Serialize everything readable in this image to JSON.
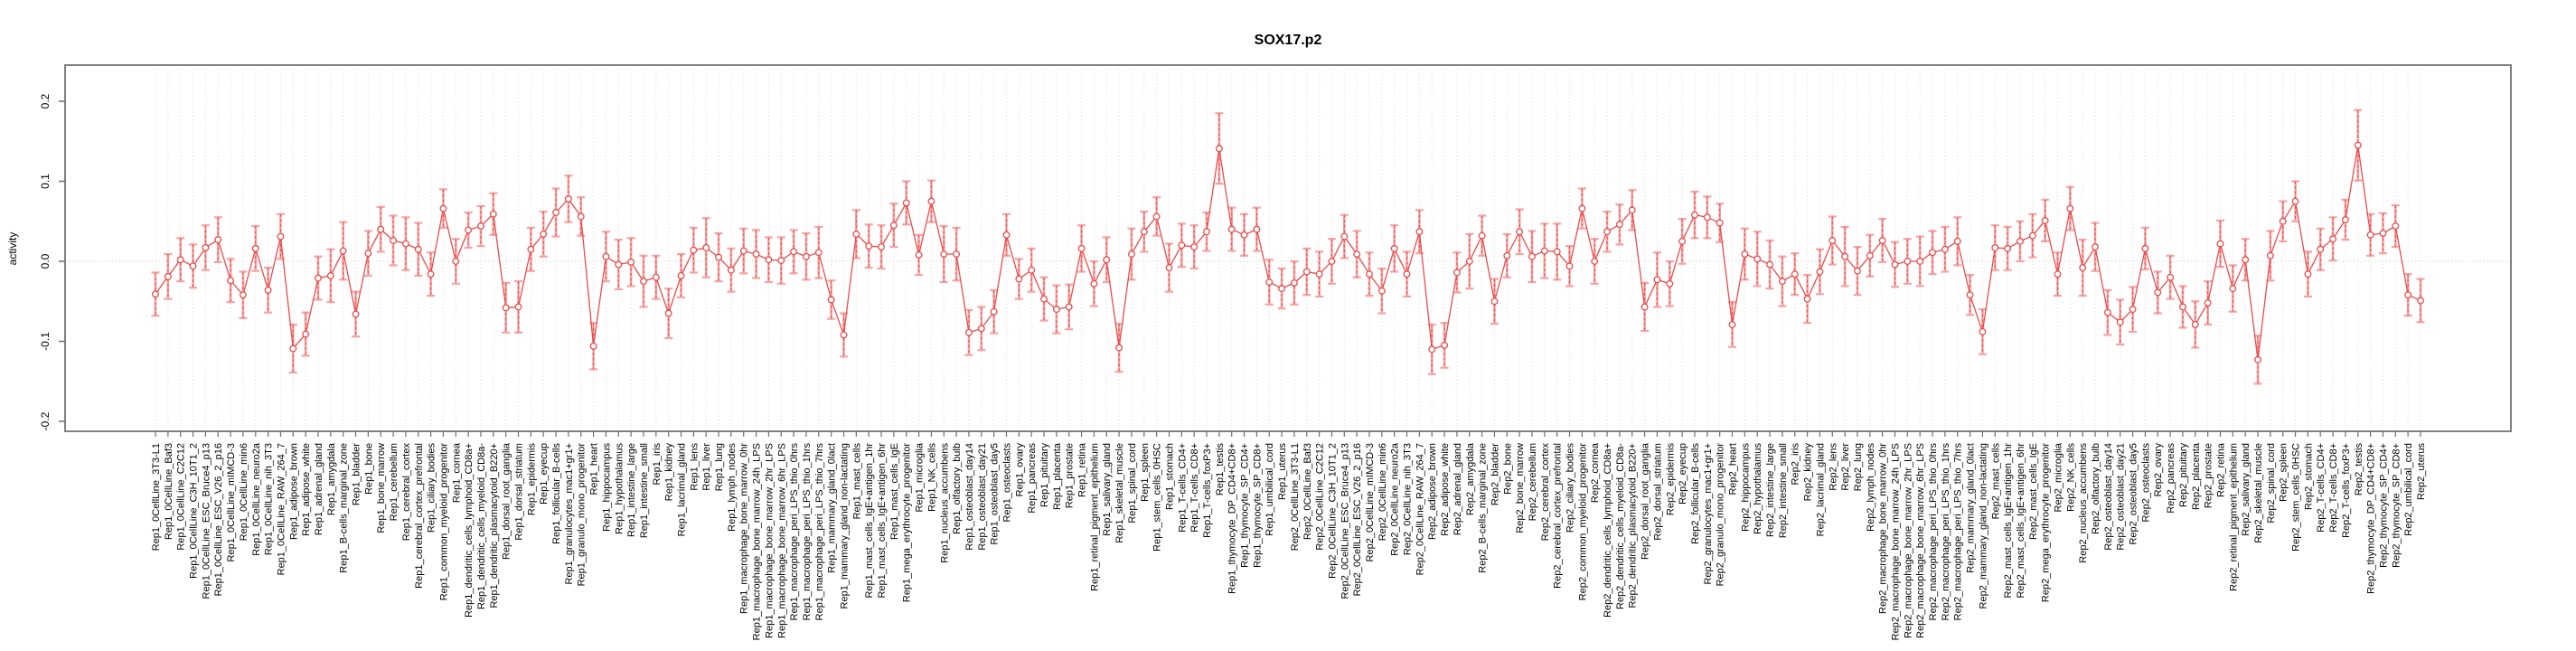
{
  "title": "SOX17.p2",
  "chart_data": {
    "type": "line",
    "title": "SOX17.p2",
    "xlabel": "",
    "ylabel": "activity",
    "ylim": [
      -0.212,
      0.245
    ],
    "yticks": [
      "0.2",
      "0.1",
      "0.0",
      "-0.1",
      "-0.2"
    ],
    "ytick_values": [
      0.2,
      0.1,
      0.0,
      -0.1,
      -0.2
    ],
    "grid": "vertical dotted gridline per category; dotted horizontal line at 0.0",
    "legend": "none",
    "marker": "open-circle",
    "error_bars": "symmetric, salmon band with caps plus red dashed stem",
    "colors": {
      "point": "#e84c4c",
      "line": "#e84c4c",
      "error_bar": "#f7a2a2",
      "grid": "#dcdcdc",
      "zero_line": "#c9c9c9",
      "axis": "#828282",
      "tick": "#6e6e6e",
      "text": "#000000"
    },
    "points": [
      [
        "Rep1_0CellLine_3T3-L1",
        -0.041,
        0.027
      ],
      [
        "Rep1_0CellLine_Baf3",
        -0.019,
        0.028
      ],
      [
        "Rep1_0CellLine_C2C12",
        0.002,
        0.027
      ],
      [
        "Rep1_0CellLine_C3H_10T1_2",
        -0.006,
        0.027
      ],
      [
        "Rep1_0CellLine_ESC_Bruce4_p13",
        0.017,
        0.028
      ],
      [
        "Rep1_0CellLine_ESC_V26_2_p16",
        0.027,
        0.028
      ],
      [
        "Rep1_0CellLine_mIMCD-3",
        -0.024,
        0.027
      ],
      [
        "Rep1_0CellLine_min6",
        -0.042,
        0.029
      ],
      [
        "Rep1_0CellLine_neuro2a",
        0.016,
        0.028
      ],
      [
        "Rep1_0CellLine_nih_3T3",
        -0.036,
        0.028
      ],
      [
        "Rep1_0CellLine_RAW_264_7",
        0.031,
        0.028
      ],
      [
        "Rep1_adipose_brown",
        -0.109,
        0.03
      ],
      [
        "Rep1_adipose_white",
        -0.091,
        0.027
      ],
      [
        "Rep1_adrenal_gland",
        -0.021,
        0.027
      ],
      [
        "Rep1_amygdala",
        -0.018,
        0.033
      ],
      [
        "Rep1_B-cells_marginal_zone",
        0.013,
        0.036
      ],
      [
        "Rep1_bladder",
        -0.066,
        0.028
      ],
      [
        "Rep1_bone",
        0.01,
        0.028
      ],
      [
        "Rep1_bone_marrow",
        0.04,
        0.028
      ],
      [
        "Rep1_cerebellum",
        0.026,
        0.031
      ],
      [
        "Rep1_cerebral_cortex",
        0.022,
        0.033
      ],
      [
        "Rep1_cerebral_cortex_prefrontal",
        0.015,
        0.033
      ],
      [
        "Rep1_ciliary_bodies",
        -0.016,
        0.027
      ],
      [
        "Rep1_common_myeloid_progenitor",
        0.066,
        0.024
      ],
      [
        "Rep1_cornea",
        0.0,
        0.028
      ],
      [
        "Rep1_dendritic_cells_lymphoid_CD8a+",
        0.039,
        0.022
      ],
      [
        "Rep1_dendritic_cells_myeloid_CD8a-",
        0.044,
        0.025
      ],
      [
        "Rep1_dendritic_plasmacytoid_B220+",
        0.059,
        0.026
      ],
      [
        "Rep1_dorsal_root_ganglia",
        -0.058,
        0.031
      ],
      [
        "Rep1_dorsal_striatum",
        -0.057,
        0.032
      ],
      [
        "Rep1_epidermis",
        0.015,
        0.027
      ],
      [
        "Rep1_eyecup",
        0.034,
        0.028
      ],
      [
        "Rep1_follicular_B-cells",
        0.061,
        0.03
      ],
      [
        "Rep1_granulocytes_mac1+gr1+",
        0.078,
        0.029
      ],
      [
        "Rep1_granulo_mono_progenitor",
        0.056,
        0.024
      ],
      [
        "Rep1_heart",
        -0.106,
        0.029
      ],
      [
        "Rep1_hippocampus",
        0.006,
        0.031
      ],
      [
        "Rep1_hypothalamus",
        -0.004,
        0.031
      ],
      [
        "Rep1_intestine_large",
        -0.001,
        0.03
      ],
      [
        "Rep1_intestine_small",
        -0.025,
        0.032
      ],
      [
        "Rep1_iris",
        -0.02,
        0.027
      ],
      [
        "Rep1_kidney",
        -0.065,
        0.031
      ],
      [
        "Rep1_lacrimal_gland",
        -0.018,
        0.027
      ],
      [
        "Rep1_lens",
        0.014,
        0.028
      ],
      [
        "Rep1_liver",
        0.017,
        0.037
      ],
      [
        "Rep1_lung",
        0.005,
        0.03
      ],
      [
        "Rep1_lymph_nodes",
        -0.011,
        0.027
      ],
      [
        "Rep1_macrophage_bone_marrow_0hr",
        0.013,
        0.028
      ],
      [
        "Rep1_macrophage_bone_marrow_24h_LPS",
        0.009,
        0.03
      ],
      [
        "Rep1_macrophage_bone_marrow_2hr_LPS",
        0.002,
        0.028
      ],
      [
        "Rep1_macrophage_bone_marrow_6hr_LPS",
        0.001,
        0.029
      ],
      [
        "Rep1_macrophage_peri_LPS_thio_0hrs",
        0.012,
        0.027
      ],
      [
        "Rep1_macrophage_peri_LPS_thio_1hrs",
        0.006,
        0.029
      ],
      [
        "Rep1_macrophage_peri_LPS_thio_7hrs",
        0.011,
        0.032
      ],
      [
        "Rep1_mammary_gland_0lact",
        -0.048,
        0.024
      ],
      [
        "Rep1_mammary_gland_non-lactating",
        -0.092,
        0.027
      ],
      [
        "Rep1_mast_cells",
        0.034,
        0.03
      ],
      [
        "Rep1_mast_cells_IgE+antigen_1hr",
        0.019,
        0.027
      ],
      [
        "Rep1_mast_cells_IgE+antigen_6hr",
        0.018,
        0.027
      ],
      [
        "Rep1_mast_cells_IgE",
        0.045,
        0.027
      ],
      [
        "Rep1_mega_erythrocyte_progenitor",
        0.073,
        0.027
      ],
      [
        "Rep1_microglia",
        0.008,
        0.025
      ],
      [
        "Rep1_NK_cells",
        0.075,
        0.026
      ],
      [
        "Rep1_nucleus_accumbens",
        0.009,
        0.035
      ],
      [
        "Rep1_olfactory_bulb",
        0.009,
        0.033
      ],
      [
        "Rep1_osteoblast_day14",
        -0.089,
        0.028
      ],
      [
        "Rep1_osteoblast_day21",
        -0.084,
        0.027
      ],
      [
        "Rep1_osteoblast_day5",
        -0.063,
        0.027
      ],
      [
        "Rep1_osteoclasts",
        0.033,
        0.026
      ],
      [
        "Rep1_ovary",
        -0.022,
        0.025
      ],
      [
        "Rep1_pancreas",
        -0.011,
        0.027
      ],
      [
        "Rep1_pituitary",
        -0.047,
        0.027
      ],
      [
        "Rep1_placenta",
        -0.06,
        0.03
      ],
      [
        "Rep1_prostate",
        -0.057,
        0.028
      ],
      [
        "Rep1_retina",
        0.016,
        0.029
      ],
      [
        "Rep1_retinal_pigment_epithelium",
        -0.028,
        0.028
      ],
      [
        "Rep1_salivary_gland",
        0.002,
        0.028
      ],
      [
        "Rep1_skeletal_muscle",
        -0.108,
        0.03
      ],
      [
        "Rep1_spinal_cord",
        0.009,
        0.032
      ],
      [
        "Rep1_spleen",
        0.037,
        0.025
      ],
      [
        "Rep1_stem_cells_0HSC",
        0.056,
        0.024
      ],
      [
        "Rep1_stomach",
        -0.008,
        0.03
      ],
      [
        "Rep1_T-cells_CD4+",
        0.02,
        0.027
      ],
      [
        "Rep1_T-cells_CD8+",
        0.018,
        0.027
      ],
      [
        "Rep1_T-cells_foxP3+",
        0.037,
        0.024
      ],
      [
        "Rep1_testis",
        0.141,
        0.044
      ],
      [
        "Rep1_thymocyte_DP_CD4+CD8+",
        0.04,
        0.027
      ],
      [
        "Rep1_thymocyte_SP_CD4+",
        0.033,
        0.026
      ],
      [
        "Rep1_thymocyte_SP_CD8+",
        0.04,
        0.027
      ],
      [
        "Rep1_umbilical_cord",
        -0.026,
        0.028
      ],
      [
        "Rep1_uterus",
        -0.034,
        0.025
      ],
      [
        "Rep2_0CellLine_3T3-L1",
        -0.027,
        0.027
      ],
      [
        "Rep2_0CellLine_Baf3",
        -0.013,
        0.029
      ],
      [
        "Rep2_0CellLine_C2C12",
        -0.016,
        0.028
      ],
      [
        "Rep2_0CellLine_C3H_10T1_2",
        0.0,
        0.028
      ],
      [
        "Rep2_0CellLine_ESC_Bruce4_p13",
        0.031,
        0.027
      ],
      [
        "Rep2_0CellLine_ESC_V26_2_p16",
        0.009,
        0.029
      ],
      [
        "Rep2_0CellLine_mIMCD-3",
        -0.016,
        0.027
      ],
      [
        "Rep2_0CellLine_min6",
        -0.037,
        0.028
      ],
      [
        "Rep2_0CellLine_neuro2a",
        0.016,
        0.029
      ],
      [
        "Rep2_0CellLine_nih_3T3",
        -0.016,
        0.028
      ],
      [
        "Rep2_0CellLine_RAW_264_7",
        0.037,
        0.027
      ],
      [
        "Rep2_adipose_brown",
        -0.11,
        0.031
      ],
      [
        "Rep2_adipose_white",
        -0.105,
        0.028
      ],
      [
        "Rep2_adrenal_gland",
        -0.014,
        0.025
      ],
      [
        "Rep2_amygdala",
        0.0,
        0.034
      ],
      [
        "Rep2_B-cells_marginal_zone",
        0.032,
        0.025
      ],
      [
        "Rep2_bladder",
        -0.05,
        0.028
      ],
      [
        "Rep2_bone",
        0.007,
        0.027
      ],
      [
        "Rep2_bone_marrow",
        0.037,
        0.028
      ],
      [
        "Rep2_cerebellum",
        0.006,
        0.032
      ],
      [
        "Rep2_cerebral_cortex",
        0.013,
        0.034
      ],
      [
        "Rep2_cerebral_cortex_prefrontal",
        0.012,
        0.035
      ],
      [
        "Rep2_ciliary_bodies",
        -0.006,
        0.025
      ],
      [
        "Rep2_common_myeloid_progenitor",
        0.066,
        0.025
      ],
      [
        "Rep2_cornea",
        0.0,
        0.028
      ],
      [
        "Rep2_dendritic_cells_lymphoid_CD8a+",
        0.037,
        0.025
      ],
      [
        "Rep2_dendritic_cells_myeloid_CD8a-",
        0.046,
        0.025
      ],
      [
        "Rep2_dendritic_plasmacytoid_B220+",
        0.064,
        0.025
      ],
      [
        "Rep2_dorsal_root_ganglia",
        -0.057,
        0.03
      ],
      [
        "Rep2_dorsal_striatum",
        -0.023,
        0.034
      ],
      [
        "Rep2_epidermis",
        -0.028,
        0.028
      ],
      [
        "Rep2_eyecup",
        0.025,
        0.028
      ],
      [
        "Rep2_follicular_B-cells",
        0.058,
        0.029
      ],
      [
        "Rep2_granulocytes_mac1+gr1+",
        0.055,
        0.026
      ],
      [
        "Rep2_granulo_mono_progenitor",
        0.048,
        0.024
      ],
      [
        "Rep2_heart",
        -0.079,
        0.028
      ],
      [
        "Rep2_hippocampus",
        0.009,
        0.032
      ],
      [
        "Rep2_hypothalamus",
        0.003,
        0.034
      ],
      [
        "Rep2_intestine_large",
        -0.004,
        0.03
      ],
      [
        "Rep2_intestine_small",
        -0.025,
        0.031
      ],
      [
        "Rep2_iris",
        -0.016,
        0.026
      ],
      [
        "Rep2_kidney",
        -0.047,
        0.03
      ],
      [
        "Rep2_lacrimal_gland",
        -0.013,
        0.028
      ],
      [
        "Rep2_lens",
        0.026,
        0.03
      ],
      [
        "Rep2_liver",
        0.006,
        0.037
      ],
      [
        "Rep2_lung",
        -0.012,
        0.03
      ],
      [
        "Rep2_lymph_nodes",
        0.007,
        0.026
      ],
      [
        "Rep2_macrophage_bone_marrow_0hr",
        0.026,
        0.027
      ],
      [
        "Rep2_macrophage_bone_marrow_24h_LPS",
        -0.004,
        0.028
      ],
      [
        "Rep2_macrophage_bone_marrow_2hr_LPS",
        0.0,
        0.028
      ],
      [
        "Rep2_macrophage_bone_marrow_6hr_LPS",
        0.0,
        0.031
      ],
      [
        "Rep2_macrophage_peri_LPS_thio_0hrs",
        0.011,
        0.027
      ],
      [
        "Rep2_macrophage_peri_LPS_thio_1hrs",
        0.015,
        0.028
      ],
      [
        "Rep2_macrophage_peri_LPS_thio_7hrs",
        0.025,
        0.03
      ],
      [
        "Rep2_mammary_gland_0lact",
        -0.042,
        0.025
      ],
      [
        "Rep2_mammary_gland_non-lactating",
        -0.088,
        0.028
      ],
      [
        "Rep2_mast_cells",
        0.017,
        0.028
      ],
      [
        "Rep2_mast_cells_IgE+antigen_1hr",
        0.016,
        0.027
      ],
      [
        "Rep2_mast_cells_IgE+antigen_6hr",
        0.025,
        0.025
      ],
      [
        "Rep2_mast_cells_IgE",
        0.032,
        0.027
      ],
      [
        "Rep2_mega_erythrocyte_progenitor",
        0.051,
        0.026
      ],
      [
        "Rep2_microglia",
        -0.016,
        0.027
      ],
      [
        "Rep2_NK_cells",
        0.066,
        0.027
      ],
      [
        "Rep2_nucleus_accumbens",
        -0.008,
        0.035
      ],
      [
        "Rep2_olfactory_bulb",
        0.018,
        0.03
      ],
      [
        "Rep2_osteoblast_day14",
        -0.064,
        0.028
      ],
      [
        "Rep2_osteoblast_day21",
        -0.076,
        0.028
      ],
      [
        "Rep2_osteoblast_day5",
        -0.06,
        0.028
      ],
      [
        "Rep2_osteoclasts",
        0.016,
        0.026
      ],
      [
        "Rep2_ovary",
        -0.039,
        0.026
      ],
      [
        "Rep2_pancreas",
        -0.02,
        0.027
      ],
      [
        "Rep2_pituitary",
        -0.057,
        0.026
      ],
      [
        "Rep2_placenta",
        -0.079,
        0.029
      ],
      [
        "Rep2_prostate",
        -0.052,
        0.027
      ],
      [
        "Rep2_retina",
        0.022,
        0.029
      ],
      [
        "Rep2_retinal_pigment_epithelium",
        -0.034,
        0.029
      ],
      [
        "Rep2_salivary_gland",
        0.002,
        0.026
      ],
      [
        "Rep2_skeletal_muscle",
        -0.123,
        0.03
      ],
      [
        "Rep2_spinal_cord",
        0.007,
        0.031
      ],
      [
        "Rep2_spleen",
        0.05,
        0.025
      ],
      [
        "Rep2_stem_cells_0HSC",
        0.075,
        0.025
      ],
      [
        "Rep2_stomach",
        -0.016,
        0.028
      ],
      [
        "Rep2_T-cells_CD4+",
        0.015,
        0.026
      ],
      [
        "Rep2_T-cells_CD8+",
        0.028,
        0.027
      ],
      [
        "Rep2_T-cells_foxP3+",
        0.052,
        0.025
      ],
      [
        "Rep2_testis",
        0.145,
        0.044
      ],
      [
        "Rep2_thymocyte_DP_CD4+CD8+",
        0.033,
        0.026
      ],
      [
        "Rep2_thymocyte_SP_CD4+",
        0.035,
        0.025
      ],
      [
        "Rep2_thymocyte_SP_CD8+",
        0.044,
        0.026
      ],
      [
        "Rep2_umbilical_cord",
        -0.042,
        0.026
      ],
      [
        "Rep2_uterus",
        -0.049,
        0.027
      ]
    ]
  }
}
